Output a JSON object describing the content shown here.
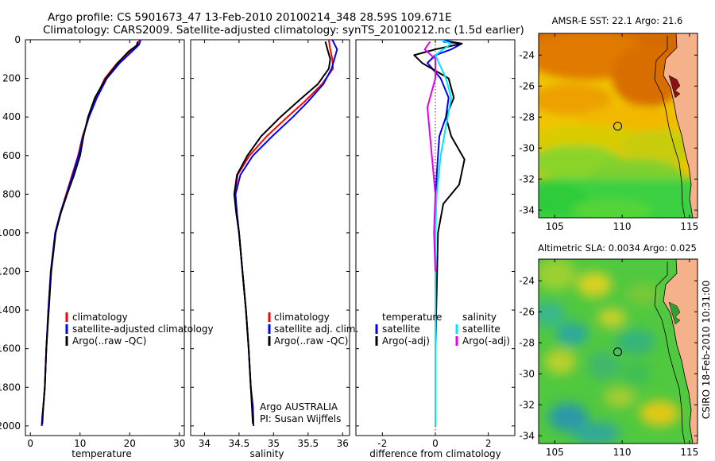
{
  "title_line1": "Argo profile: CS 5901673_47 13-Feb-2010 20100214_348 28.59S 109.671E",
  "title_line2": "Climatology: CARS2009. Satellite-adjusted climatology: synTS_20100212.nc (1.5d earlier)",
  "side_label": "CSIRO 18-Feb-2010 10:31:00",
  "colors": {
    "climatology": "#ff0000",
    "satellite": "#0000ff",
    "argo": "#000000",
    "satellite_salinity": "#00e5ff",
    "argo_adj_salinity": "#e600e6"
  },
  "chart_data": [
    {
      "type": "line",
      "xlabel": "temperature",
      "xlim": [
        -1,
        31
      ],
      "ylim": [
        2050,
        0
      ],
      "xticks": [
        "0",
        "10",
        "20",
        "30"
      ],
      "yticks": [
        "0",
        "200",
        "400",
        "600",
        "800",
        "1000",
        "1200",
        "1400",
        "1600",
        "1800",
        "2000"
      ],
      "legend": [
        "climatology",
        "satellite-adjusted climatology",
        "Argo(..raw -QC)"
      ],
      "series": [
        {
          "name": "climatology",
          "color": "#ff0000",
          "x": [
            22.0,
            21.6,
            20.3,
            17.5,
            15.0,
            13.2,
            11.8,
            10.5,
            9.6,
            8.4,
            7.2,
            6.0,
            5.0,
            4.1,
            3.6,
            3.2,
            2.9,
            2.6,
            2.4,
            2.3
          ],
          "y": [
            0,
            25,
            55,
            120,
            200,
            300,
            400,
            500,
            600,
            700,
            800,
            900,
            1000,
            1200,
            1400,
            1600,
            1800,
            1900,
            1950,
            2000
          ]
        },
        {
          "name": "satellite-adjusted climatology",
          "color": "#0000ff",
          "x": [
            22.2,
            21.9,
            20.7,
            18.0,
            15.4,
            13.4,
            11.8,
            10.6,
            9.7,
            8.5,
            7.3,
            6.0,
            5.0,
            4.1,
            3.6,
            3.2,
            2.9,
            2.6,
            2.4,
            2.3
          ],
          "y": [
            0,
            25,
            55,
            120,
            200,
            300,
            400,
            500,
            600,
            700,
            800,
            900,
            1000,
            1200,
            1400,
            1600,
            1800,
            1900,
            1950,
            2000
          ]
        },
        {
          "name": "Argo(..raw -QC)",
          "color": "#000000",
          "x": [
            21.6,
            21.4,
            19.8,
            17.6,
            15.2,
            13.0,
            11.6,
            10.7,
            10.0,
            8.8,
            7.4,
            6.1,
            5.1,
            4.2,
            3.7,
            3.2,
            2.9,
            2.6,
            2.4
          ],
          "y": [
            10,
            30,
            60,
            120,
            200,
            300,
            400,
            500,
            600,
            700,
            800,
            900,
            1000,
            1200,
            1400,
            1600,
            1800,
            1900,
            1990
          ]
        }
      ]
    },
    {
      "type": "line",
      "xlabel": "salinity",
      "xlim": [
        33.8,
        36.1
      ],
      "ylim": [
        2050,
        0
      ],
      "xticks": [
        "34",
        "34.5",
        "35",
        "35.5",
        "36"
      ],
      "legend": [
        "climatology",
        "satellite adj. clim.",
        "Argo(..raw -QC)"
      ],
      "annotation": [
        "Argo AUSTRALIA",
        "PI: Susan Wijffels"
      ],
      "series": [
        {
          "name": "climatology",
          "color": "#ff0000",
          "x": [
            35.8,
            35.82,
            35.85,
            35.86,
            35.7,
            35.45,
            35.2,
            34.9,
            34.65,
            34.48,
            34.44,
            34.47,
            34.5,
            34.55,
            34.6,
            34.64,
            34.67,
            34.7,
            34.71
          ],
          "y": [
            0,
            50,
            100,
            150,
            230,
            320,
            400,
            500,
            600,
            700,
            800,
            900,
            1000,
            1200,
            1400,
            1600,
            1800,
            1900,
            2000
          ]
        },
        {
          "name": "satellite adj. clim.",
          "color": "#0000ff",
          "x": [
            35.85,
            35.92,
            35.88,
            35.84,
            35.72,
            35.5,
            35.28,
            34.98,
            34.7,
            34.52,
            34.45,
            34.47,
            34.5,
            34.55,
            34.6,
            34.64,
            34.67,
            34.7,
            34.71
          ],
          "y": [
            0,
            50,
            100,
            150,
            230,
            320,
            400,
            500,
            600,
            700,
            800,
            900,
            1000,
            1200,
            1400,
            1600,
            1800,
            1900,
            2000
          ]
        },
        {
          "name": "Argo(..raw -QC)",
          "color": "#000000",
          "x": [
            35.75,
            35.78,
            35.82,
            35.8,
            35.64,
            35.35,
            35.1,
            34.82,
            34.62,
            34.47,
            34.43,
            34.46,
            34.5,
            34.55,
            34.6,
            34.64,
            34.67,
            34.7
          ],
          "y": [
            10,
            50,
            100,
            150,
            230,
            320,
            400,
            500,
            600,
            700,
            800,
            900,
            1000,
            1200,
            1400,
            1600,
            1800,
            1990
          ]
        }
      ]
    },
    {
      "type": "line",
      "xlabel": "difference from climatology",
      "xlim": [
        -3.0,
        3.0
      ],
      "ylim": [
        2050,
        0
      ],
      "xticks": [
        "-2",
        "0",
        "2"
      ],
      "legend": [
        "temperature",
        "satellite",
        "Argo(-adj)",
        "salinity",
        "satellite",
        "Argo(-adj)"
      ],
      "series": [
        {
          "name": "temperature satellite",
          "color": "#0000ff",
          "x": [
            0.2,
            1.0,
            0.6,
            0.0,
            -0.3,
            0.2,
            0.5,
            0.4,
            0.15,
            0.05,
            0.0,
            0.0,
            0.0,
            0.0,
            0.0
          ],
          "y": [
            0,
            20,
            50,
            80,
            120,
            200,
            300,
            400,
            500,
            700,
            900,
            1200,
            1500,
            1800,
            2000
          ]
        },
        {
          "name": "temperature Argo(-adj)",
          "color": "#000000",
          "x": [
            0.3,
            1.0,
            0.0,
            -0.8,
            -0.5,
            0.5,
            0.7,
            0.4,
            0.6,
            1.1,
            0.9,
            0.3,
            0.1,
            0.05,
            0.0,
            0.0
          ],
          "y": [
            10,
            20,
            50,
            80,
            120,
            200,
            300,
            400,
            500,
            620,
            750,
            850,
            1000,
            1300,
            1600,
            1990
          ]
        },
        {
          "name": "salinity satellite",
          "color": "#00e5ff",
          "x": [
            0.2,
            0.6,
            0.3,
            0.0,
            0.4,
            0.6,
            0.4,
            0.2,
            0.05,
            0.0,
            0.0,
            0.0,
            0.0
          ],
          "y": [
            0,
            20,
            50,
            80,
            200,
            300,
            450,
            600,
            800,
            1000,
            1300,
            1700,
            2000
          ]
        },
        {
          "name": "salinity Argo(-adj)",
          "color": "#e600e6",
          "x": [
            -0.2,
            -0.4,
            0.0,
            0.0,
            -0.3,
            -0.2,
            -0.1,
            0.0,
            -0.05,
            0.0
          ],
          "y": [
            10,
            50,
            100,
            200,
            350,
            500,
            650,
            800,
            1000,
            1200
          ]
        }
      ]
    },
    {
      "type": "heatmap",
      "title": "AMSR-E SST: 22.1 Argo: 21.6",
      "xlim": [
        103.8,
        115.6
      ],
      "ylim": [
        -34.5,
        -22.6
      ],
      "xticks": [
        "105",
        "110",
        "115"
      ],
      "yticks": [
        "-24",
        "-26",
        "-28",
        "-30",
        "-32",
        "-34"
      ],
      "marker": {
        "lon": 109.671,
        "lat": -28.59
      }
    },
    {
      "type": "heatmap",
      "title": "Altimetric SLA: 0.0034 Argo: 0.025",
      "xlim": [
        103.8,
        115.6
      ],
      "ylim": [
        -34.5,
        -22.6
      ],
      "xticks": [
        "105",
        "110",
        "115"
      ],
      "yticks": [
        "-24",
        "-26",
        "-28",
        "-30",
        "-32",
        "-34"
      ],
      "marker": {
        "lon": 109.671,
        "lat": -28.59
      }
    }
  ]
}
